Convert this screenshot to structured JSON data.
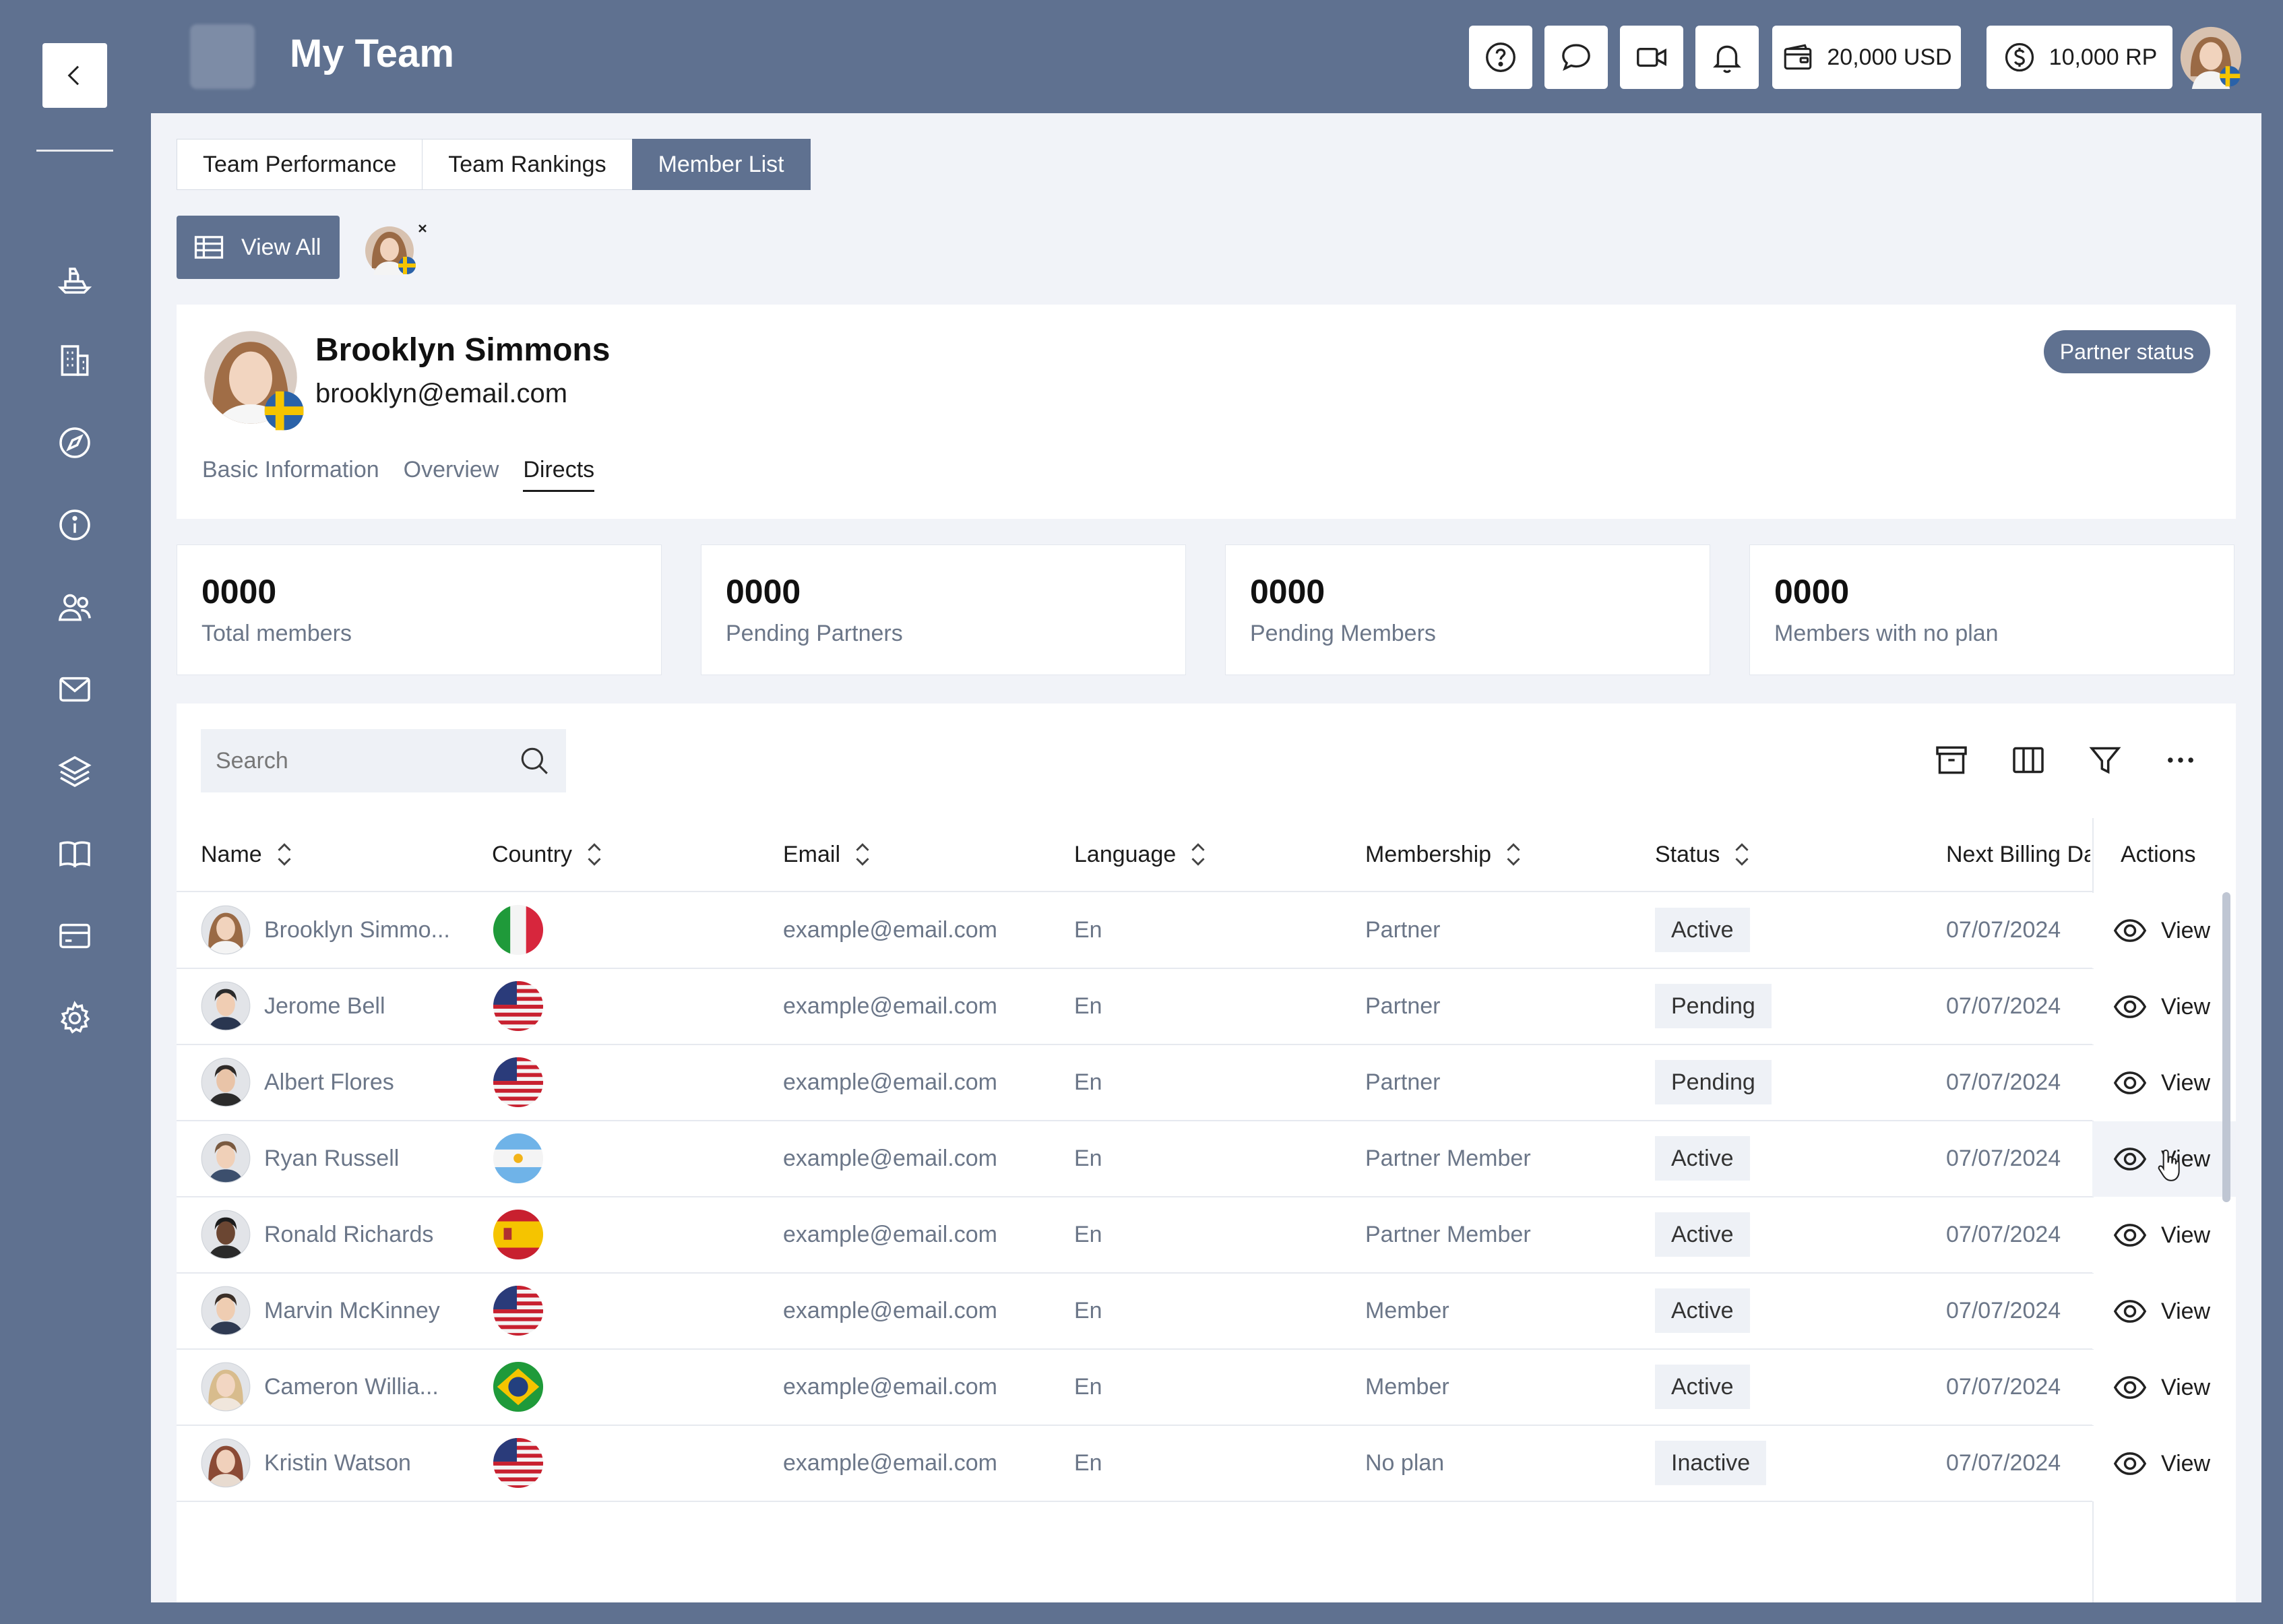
{
  "header": {
    "title": "My Team",
    "wallet_usd": "20,000 USD",
    "wallet_rp": "10,000 RP"
  },
  "sidebar": {
    "icons": [
      "boat-icon",
      "building-icon",
      "compass-icon",
      "info-icon",
      "users-icon",
      "mail-icon",
      "layers-icon",
      "book-icon",
      "credit-card-icon",
      "gear-icon"
    ]
  },
  "tabs": [
    {
      "label": "Team Performance"
    },
    {
      "label": "Team Rankings"
    },
    {
      "label": "Member List"
    }
  ],
  "view_all_label": "View All",
  "profile": {
    "name": "Brooklyn Simmons",
    "email": "brooklyn@email.com",
    "badge": "Partner status",
    "subtabs": [
      {
        "label": "Basic Information"
      },
      {
        "label": "Overview"
      },
      {
        "label": "Directs"
      }
    ]
  },
  "stats": [
    {
      "value": "0000",
      "label": "Total members"
    },
    {
      "value": "0000",
      "label": "Pending Partners"
    },
    {
      "value": "0000",
      "label": "Pending Members"
    },
    {
      "value": "0000",
      "label": "Members with no plan"
    }
  ],
  "table": {
    "search_placeholder": "Search",
    "columns": [
      "Name",
      "Country",
      "Email",
      "Language",
      "Membership",
      "Status",
      "Next Billing Da",
      "Actions"
    ],
    "action_label": "View",
    "rows": [
      {
        "name": "Brooklyn Simmo...",
        "country": "italy",
        "email": "example@email.com",
        "language": "En",
        "membership": "Partner",
        "status": "Active",
        "billing": "07/07/2024"
      },
      {
        "name": "Jerome Bell",
        "country": "usa",
        "email": "example@email.com",
        "language": "En",
        "membership": "Partner",
        "status": "Pending",
        "billing": "07/07/2024"
      },
      {
        "name": "Albert Flores",
        "country": "usa",
        "email": "example@email.com",
        "language": "En",
        "membership": "Partner",
        "status": "Pending",
        "billing": "07/07/2024"
      },
      {
        "name": "Ryan Russell",
        "country": "argentina",
        "email": "example@email.com",
        "language": "En",
        "membership": "Partner Member",
        "status": "Active",
        "billing": "07/07/2024"
      },
      {
        "name": "Ronald Richards",
        "country": "spain",
        "email": "example@email.com",
        "language": "En",
        "membership": "Partner Member",
        "status": "Active",
        "billing": "07/07/2024"
      },
      {
        "name": "Marvin McKinney",
        "country": "usa",
        "email": "example@email.com",
        "language": "En",
        "membership": "Member",
        "status": "Active",
        "billing": "07/07/2024"
      },
      {
        "name": "Cameron Willia...",
        "country": "brazil",
        "email": "example@email.com",
        "language": "En",
        "membership": "Member",
        "status": "Active",
        "billing": "07/07/2024"
      },
      {
        "name": "Kristin Watson",
        "country": "usa",
        "email": "example@email.com",
        "language": "En",
        "membership": "No plan",
        "status": "Inactive",
        "billing": "07/07/2024"
      }
    ]
  },
  "colors": {
    "primary": "#5F7190",
    "background": "#F1F3F8"
  }
}
